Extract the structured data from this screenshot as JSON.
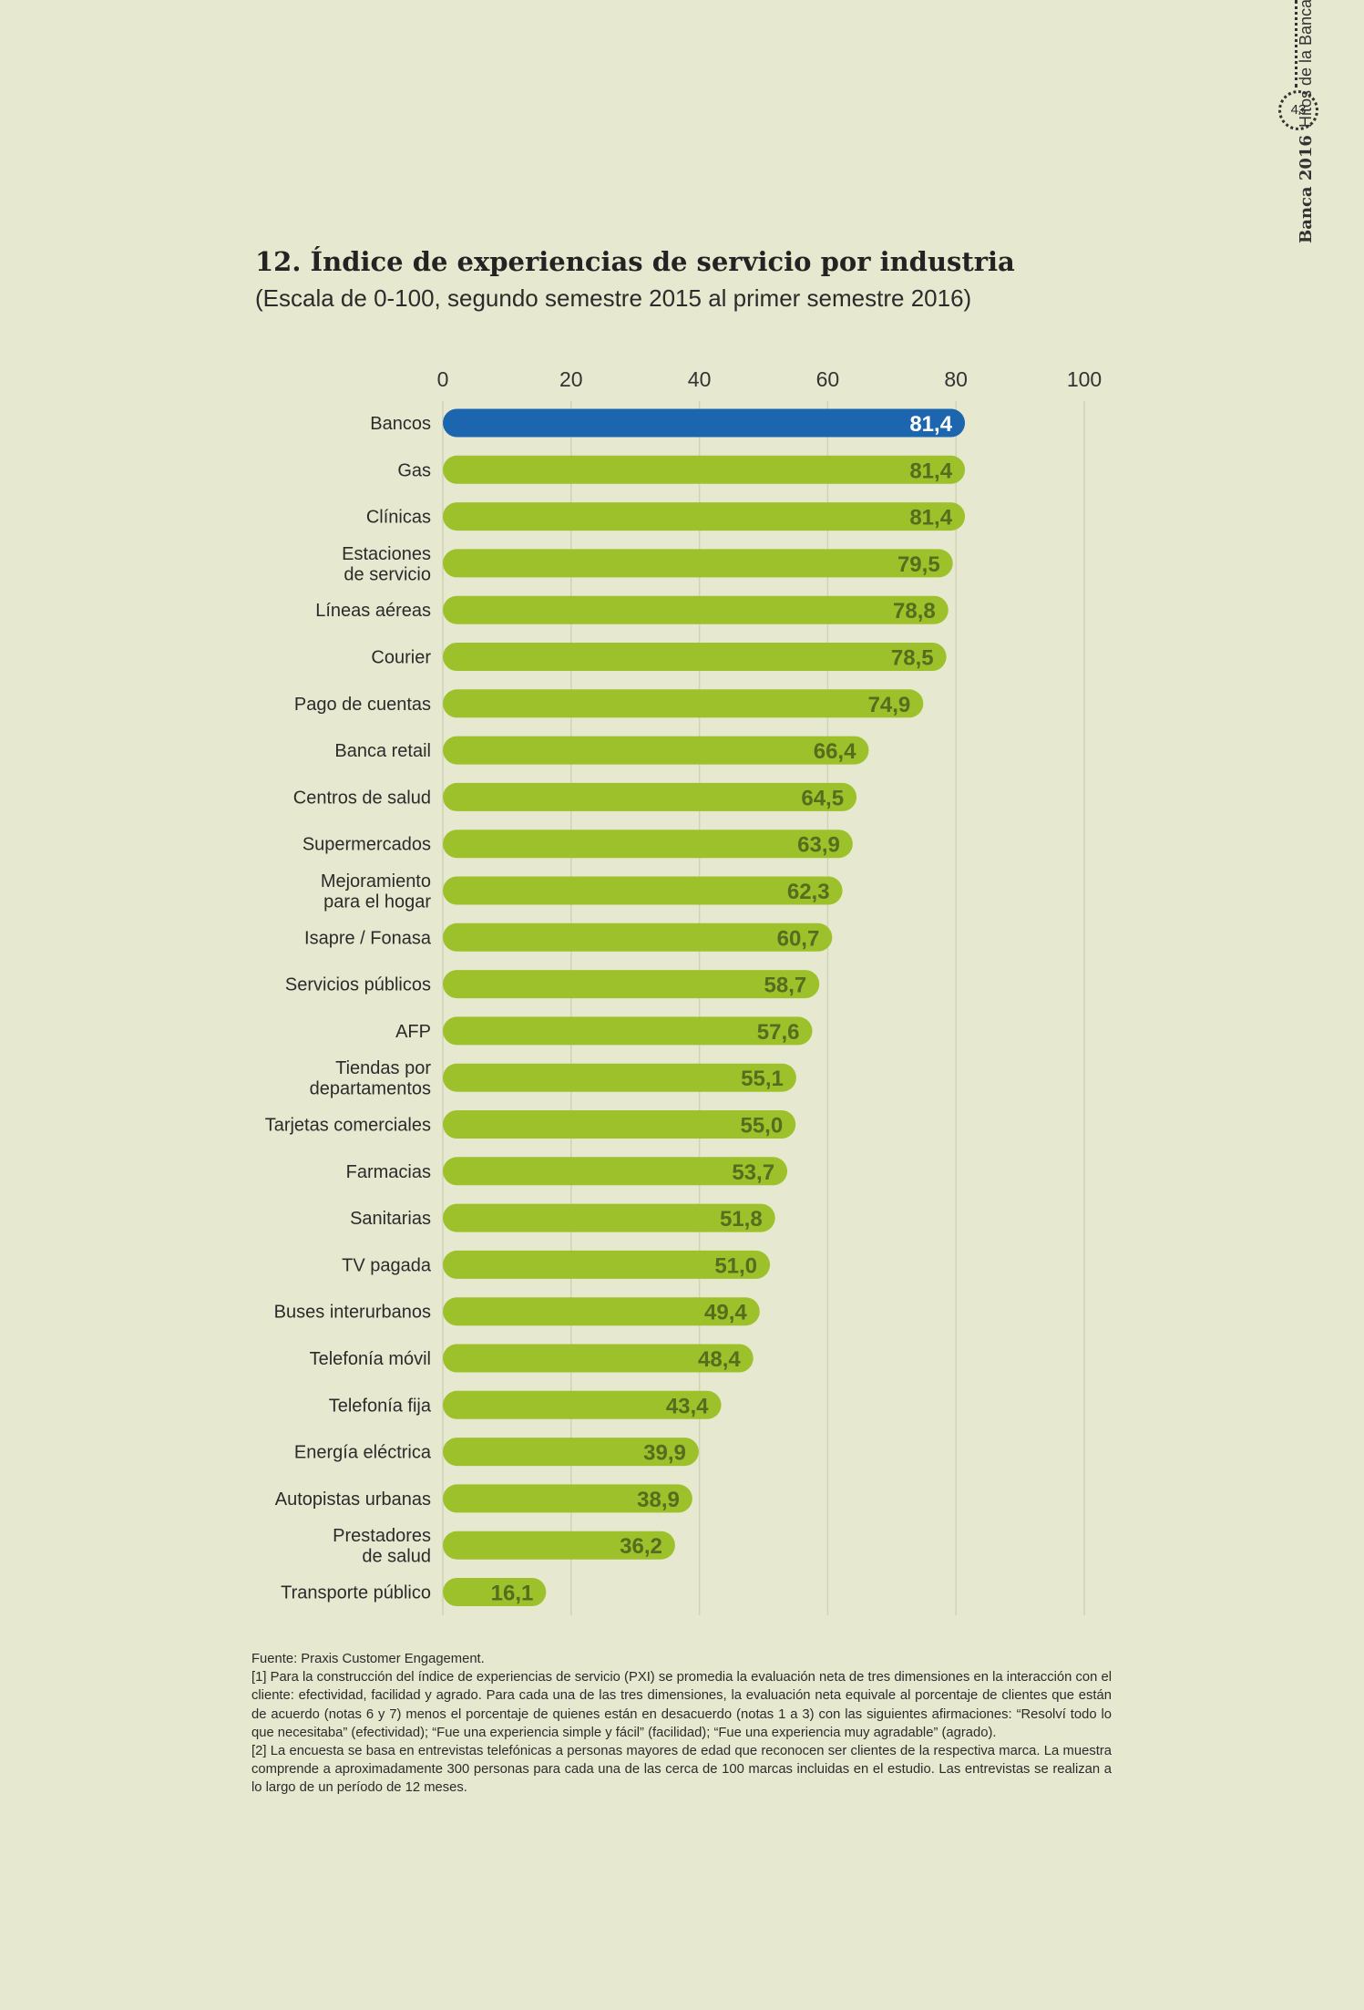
{
  "sidebar": {
    "page_number": "43",
    "publication": "Banca 2016",
    "section": "Hitos de la Banca"
  },
  "chart_data": {
    "type": "bar",
    "orientation": "horizontal",
    "title": "12. Índice de experiencias de servicio por industria",
    "subtitle": "(Escala de 0-100, segundo semestre 2015 al primer semestre 2016)",
    "xlim": [
      0,
      100
    ],
    "x_ticks": [
      "0",
      "20",
      "40",
      "60",
      "80",
      "100"
    ],
    "x_tick_values": [
      0,
      20,
      40,
      60,
      80,
      100
    ],
    "grid": true,
    "categories": [
      [
        "Bancos"
      ],
      [
        "Gas"
      ],
      [
        "Clínicas"
      ],
      [
        "Estaciones",
        "de servicio"
      ],
      [
        "Líneas aéreas"
      ],
      [
        "Courier"
      ],
      [
        "Pago de cuentas"
      ],
      [
        "Banca retail"
      ],
      [
        "Centros de salud"
      ],
      [
        "Supermercados"
      ],
      [
        "Mejoramiento",
        "para el hogar"
      ],
      [
        "Isapre / Fonasa"
      ],
      [
        "Servicios públicos"
      ],
      [
        "AFP"
      ],
      [
        "Tiendas por",
        "departamentos"
      ],
      [
        "Tarjetas comerciales"
      ],
      [
        "Farmacias"
      ],
      [
        "Sanitarias"
      ],
      [
        "TV pagada"
      ],
      [
        "Buses interurbanos"
      ],
      [
        "Telefonía móvil"
      ],
      [
        "Telefonía fija"
      ],
      [
        "Energía eléctrica"
      ],
      [
        "Autopistas urbanas"
      ],
      [
        "Prestadores",
        "de salud"
      ],
      [
        "Transporte público"
      ]
    ],
    "values": [
      81.4,
      81.4,
      81.4,
      79.5,
      78.8,
      78.5,
      74.9,
      66.4,
      64.5,
      63.9,
      62.3,
      60.7,
      58.7,
      57.6,
      55.1,
      55.0,
      53.7,
      51.8,
      51.0,
      49.4,
      48.4,
      43.4,
      39.9,
      38.9,
      36.2,
      16.1
    ],
    "value_labels": [
      "81,4",
      "81,4",
      "81,4",
      "79,5",
      "78,8",
      "78,5",
      "74,9",
      "66,4",
      "64,5",
      "63,9",
      "62,3",
      "60,7",
      "58,7",
      "57,6",
      "55,1",
      "55,0",
      "53,7",
      "51,8",
      "51,0",
      "49,4",
      "48,4",
      "43,4",
      "39,9",
      "38,9",
      "36,2",
      "16,1"
    ],
    "highlight_index": 0,
    "colors": {
      "bar": "#9dc12b",
      "highlight": "#1b66ae",
      "label": "#566c1e",
      "highlight_label": "#ffffff",
      "grid": "#d0d3b8"
    }
  },
  "notes": [
    "Fuente: Praxis Customer Engagement.",
    "[1] Para la construcción del índice de experiencias de servicio (PXI) se promedia la evaluación neta de tres dimensiones en la interacción con el cliente: efectividad, facilidad y agrado. Para cada una de las tres dimensiones, la evaluación neta equivale al porcentaje de clientes que están de acuerdo (notas 6 y 7) menos el porcentaje de quienes están en desacuerdo (notas 1 a 3) con las siguientes afirmaciones: “Resolví todo lo que necesitaba” (efectividad); “Fue una experiencia simple y fácil” (facilidad); “Fue una experiencia muy agradable” (agrado).",
    "[2] La encuesta se basa en entrevistas telefónicas a personas mayores de edad que reconocen ser clientes de la respectiva marca. La muestra comprende a aproximadamente 300 personas para cada una de las cerca de 100 marcas incluidas en el estudio. Las entrevistas se realizan a lo largo de un período de 12 meses."
  ]
}
